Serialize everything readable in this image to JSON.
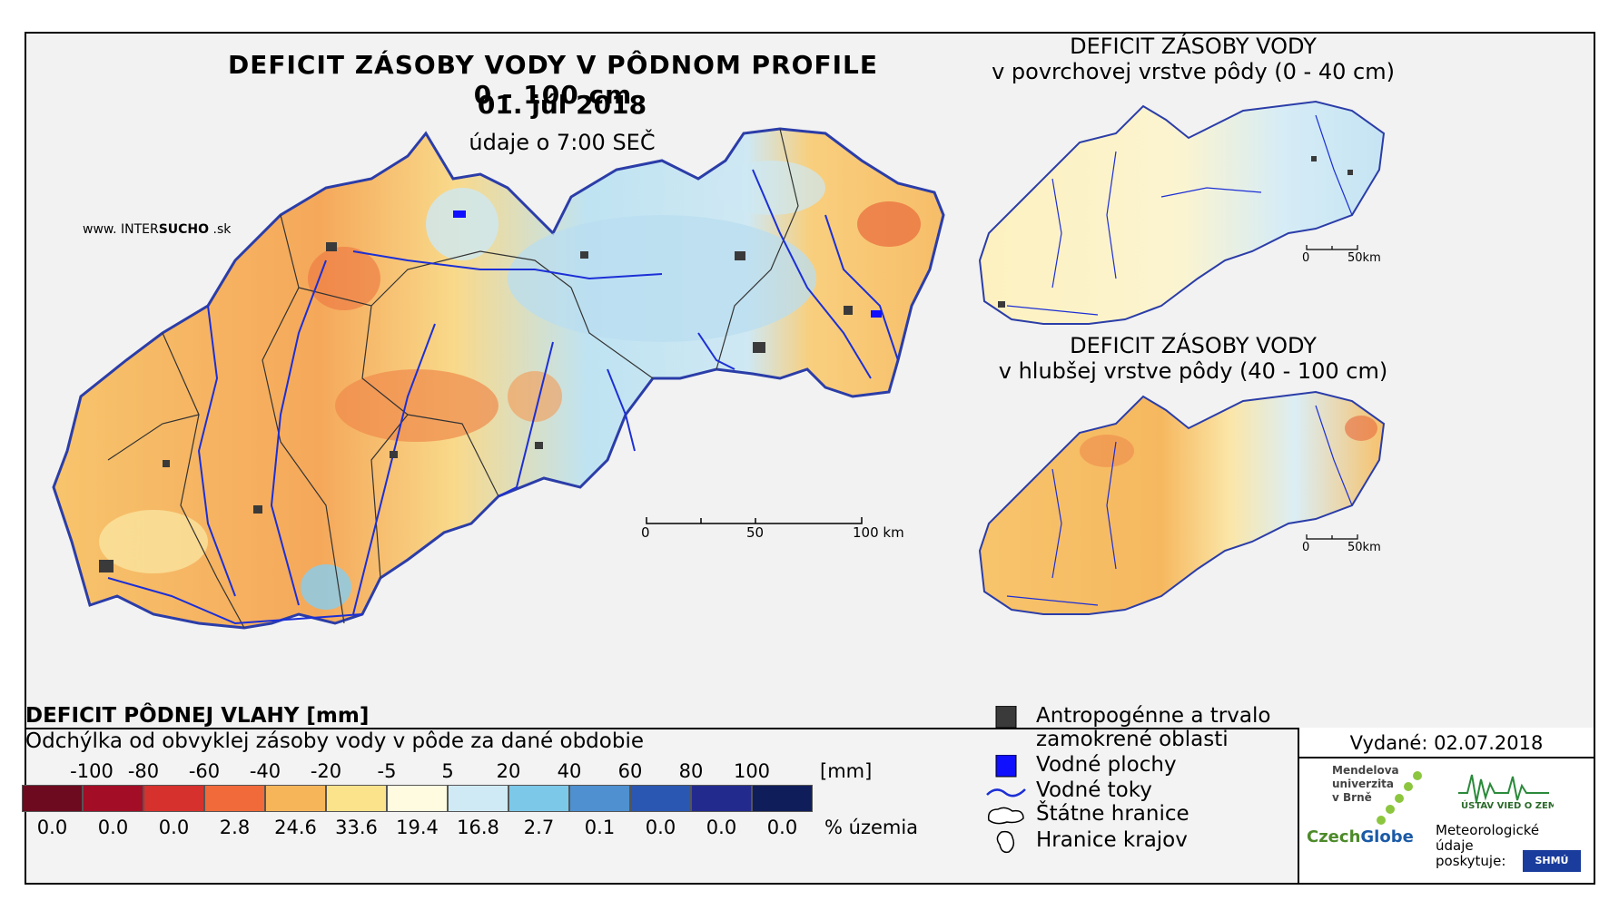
{
  "map": {
    "title": "DEFICIT ZÁSOBY VODY V PÔDNOM PROFILE 0 - 100 cm",
    "date": "01. júl 2018",
    "subtitle": "údaje o 7:00 SEČ",
    "website_prefix": "www. INTER",
    "website_brand": "SUCHO",
    "website_suffix": " .sk",
    "scale_labels": [
      "0",
      "50",
      "100 km"
    ]
  },
  "insets": [
    {
      "title_line1": "DEFICIT ZÁSOBY VODY",
      "title_line2": "v povrchovej vrstve pôdy (0 - 40 cm)",
      "scale_labels": [
        "0",
        "50km"
      ]
    },
    {
      "title_line1": "DEFICIT ZÁSOBY VODY",
      "title_line2": "v hlubšej vrstve pôdy (40 - 100 cm)",
      "scale_labels": [
        "0",
        "50km"
      ]
    }
  ],
  "legend": {
    "title": "DEFICIT PÔDNEJ VLAHY [mm]",
    "subtitle": "Odchýlka od obvyklej zásoby vody v pôde za dané obdobie",
    "class_breaks": [
      "-100",
      "-80",
      "-60",
      "-40",
      "-20",
      "-5",
      "5",
      "20",
      "40",
      "60",
      "80",
      "100"
    ],
    "unit": "[mm]",
    "colors": [
      "#6d0a1f",
      "#a30d26",
      "#d6312c",
      "#f06a3a",
      "#f7b55a",
      "#fbe38c",
      "#fefbe0",
      "#cfeaf5",
      "#7cc8e8",
      "#4e90d0",
      "#2a57b2",
      "#232a8e",
      "#0f1e5a"
    ],
    "percent_values": [
      "0.0",
      "0.0",
      "0.0",
      "2.8",
      "24.6",
      "33.6",
      "19.4",
      "16.8",
      "2.7",
      "0.1",
      "0.0",
      "0.0",
      "0.0"
    ],
    "percent_unit": "% územia"
  },
  "keys": [
    {
      "label_line1": "Antropogénne a trvalo",
      "label_line2": "zamokrené oblasti",
      "icon": "dark-square-icon"
    },
    {
      "label_line1": "Vodné plochy",
      "icon": "blue-square-icon"
    },
    {
      "label_line1": "Vodné toky",
      "icon": "river-line-icon"
    },
    {
      "label_line1": "Štátne hranice",
      "icon": "state-border-icon"
    },
    {
      "label_line1": "Hranice krajov",
      "icon": "region-border-icon"
    }
  ],
  "info": {
    "issued": "Vydané: 02.07.2018",
    "mendel_line1": "Mendelova",
    "mendel_line2": "univerzita",
    "mendel_line3": "v Brně",
    "czech_a": "Czech",
    "czech_b": "Globe",
    "uvoz": "ÚSTAV VIED O ZEMI",
    "meteo_line1": "Meteorologické",
    "meteo_line2": "údaje",
    "meteo_line3": "poskytuje:",
    "shmu": "SHMÚ"
  }
}
